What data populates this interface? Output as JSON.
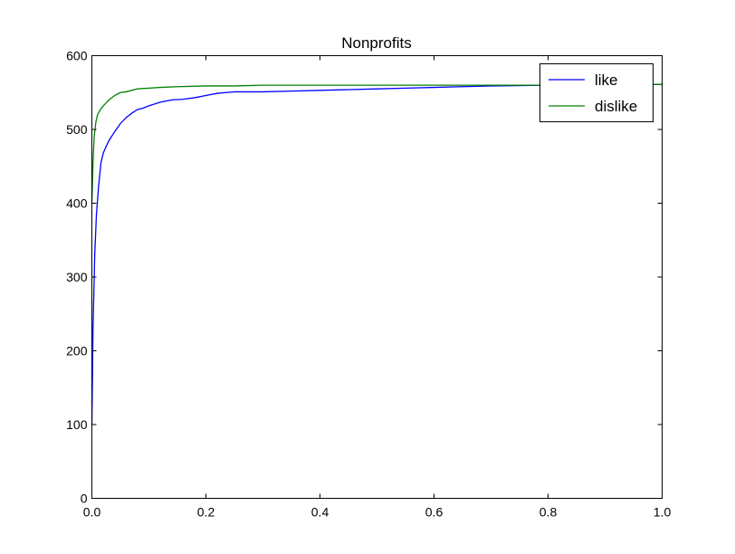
{
  "chart_data": {
    "type": "line",
    "title": "Nonprofits",
    "xlabel": "",
    "ylabel": "",
    "xlim": [
      0.0,
      1.0
    ],
    "ylim": [
      0,
      600
    ],
    "x_ticks": [
      0.0,
      0.2,
      0.4,
      0.6,
      0.8,
      1.0
    ],
    "x_tick_labels": [
      "0.0",
      "0.2",
      "0.4",
      "0.6",
      "0.8",
      "1.0"
    ],
    "y_ticks": [
      0,
      100,
      200,
      300,
      400,
      500,
      600
    ],
    "y_tick_labels": [
      "0",
      "100",
      "200",
      "300",
      "400",
      "500",
      "600"
    ],
    "grid": false,
    "legend": {
      "position": "top-right"
    },
    "series": [
      {
        "name": "like",
        "color": "#0000ff",
        "x": [
          0.0,
          0.002,
          0.005,
          0.008,
          0.012,
          0.016,
          0.02,
          0.025,
          0.03,
          0.04,
          0.05,
          0.06,
          0.07,
          0.08,
          0.09,
          0.1,
          0.12,
          0.14,
          0.16,
          0.18,
          0.2,
          0.22,
          0.25,
          0.3,
          0.35,
          0.4,
          0.45,
          0.5,
          0.55,
          0.6,
          0.65,
          0.7,
          0.8,
          0.9,
          1.0
        ],
        "y": [
          100,
          230,
          330,
          385,
          425,
          455,
          468,
          477,
          485,
          497,
          508,
          516,
          522,
          527,
          529,
          532,
          537,
          540,
          541,
          543,
          546,
          549,
          551,
          551,
          552,
          553,
          554,
          555,
          556,
          557,
          558,
          559,
          560,
          560,
          561
        ]
      },
      {
        "name": "dislike",
        "color": "#008000",
        "x": [
          0.0,
          0.002,
          0.004,
          0.007,
          0.01,
          0.015,
          0.02,
          0.025,
          0.03,
          0.04,
          0.05,
          0.06,
          0.07,
          0.08,
          0.1,
          0.12,
          0.15,
          0.2,
          0.25,
          0.3,
          0.4,
          0.5,
          0.6,
          0.7,
          0.8,
          0.9,
          1.0
        ],
        "y": [
          400,
          455,
          490,
          510,
          520,
          527,
          532,
          536,
          540,
          546,
          550,
          551,
          553,
          555,
          556,
          557,
          558,
          559,
          559,
          560,
          560,
          560,
          560,
          560,
          560,
          561,
          561
        ]
      }
    ]
  }
}
